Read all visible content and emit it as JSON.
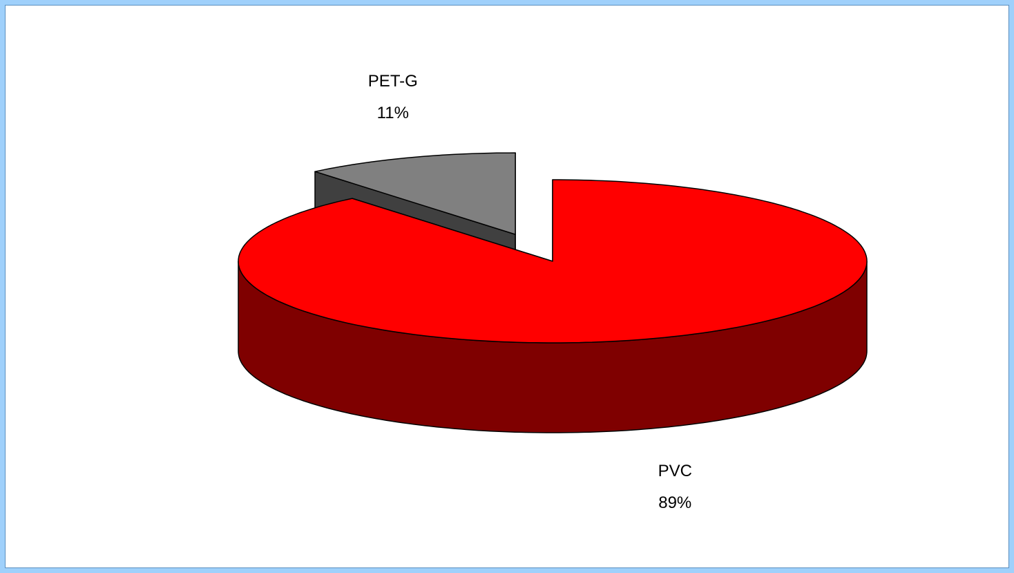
{
  "chart_data": {
    "type": "pie",
    "categories": [
      "PVC",
      "PET-G"
    ],
    "values": [
      89,
      11
    ],
    "value_labels": [
      "89%",
      "11%"
    ],
    "colors": [
      "#ff0000",
      "#808080"
    ]
  }
}
